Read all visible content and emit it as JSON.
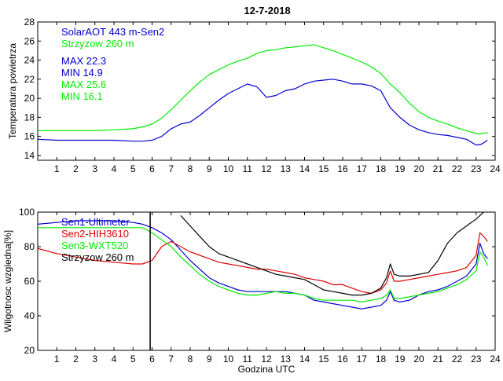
{
  "figure_title": "12-7-2018",
  "chart_data": [
    {
      "type": "line",
      "title": "12-7-2018",
      "xlabel": "",
      "ylabel": "Temperatura powietrza",
      "xlim": [
        0,
        24
      ],
      "ylim": [
        13.5,
        28
      ],
      "xticks": [
        1,
        2,
        3,
        4,
        5,
        6,
        7,
        8,
        9,
        10,
        11,
        12,
        13,
        14,
        15,
        16,
        17,
        18,
        19,
        20,
        21,
        22,
        23,
        24
      ],
      "yticks": [
        14,
        16,
        18,
        20,
        22,
        24,
        26,
        28
      ],
      "legend_position": "top-left",
      "legend": [
        {
          "label": "SolarAOT 443 m-Sen2",
          "color": "#0000cc"
        },
        {
          "label": "Strzyzow 260 m",
          "color": "#00ee00"
        }
      ],
      "annotations": [
        {
          "text": "MAX 22.3",
          "color": "#0000cc"
        },
        {
          "text": "MIN 14.9",
          "color": "#0000cc"
        },
        {
          "text": "MAX 25.6",
          "color": "#00ee00"
        },
        {
          "text": "MIN 16.1",
          "color": "#00ee00"
        }
      ],
      "x": [
        0,
        1,
        2,
        3,
        4,
        5,
        5.5,
        6,
        6.5,
        7,
        7.5,
        8,
        8.5,
        9,
        9.5,
        10,
        10.5,
        11,
        11.5,
        12,
        12.5,
        13,
        13.5,
        14,
        14.5,
        15,
        15.5,
        16,
        16.5,
        17,
        17.5,
        18,
        18.5,
        19,
        19.5,
        20,
        20.5,
        21,
        21.5,
        22,
        22.5,
        23,
        23.3,
        23.6
      ],
      "series": [
        {
          "name": "SolarAOT 443 m-Sen2",
          "color": "#0000cc",
          "values": [
            15.7,
            15.6,
            15.6,
            15.6,
            15.6,
            15.5,
            15.5,
            15.6,
            16.0,
            16.8,
            17.3,
            17.5,
            18.2,
            19.0,
            19.8,
            20.5,
            21.0,
            21.5,
            21.2,
            20.1,
            20.3,
            20.8,
            21.0,
            21.5,
            21.8,
            21.9,
            22.0,
            21.8,
            21.5,
            21.5,
            21.3,
            20.8,
            19.0,
            18.0,
            17.2,
            16.7,
            16.4,
            16.2,
            16.1,
            15.9,
            15.7,
            15.1,
            15.2,
            15.6
          ]
        },
        {
          "name": "Strzyzow 260 m",
          "color": "#00ee00",
          "values": [
            16.6,
            16.6,
            16.6,
            16.6,
            16.7,
            16.8,
            17.0,
            17.3,
            17.9,
            18.8,
            19.8,
            20.8,
            21.7,
            22.5,
            23.0,
            23.5,
            23.9,
            24.2,
            24.7,
            25.0,
            25.1,
            25.3,
            25.4,
            25.5,
            25.6,
            25.3,
            25.0,
            24.6,
            24.2,
            23.8,
            23.3,
            22.6,
            21.5,
            20.6,
            19.5,
            18.6,
            18.0,
            17.6,
            17.3,
            16.9,
            16.6,
            16.3,
            16.3,
            16.4
          ]
        }
      ]
    },
    {
      "type": "line",
      "title": "",
      "xlabel": "Godzina UTC",
      "ylabel": "Wilgotnosc wzgledna[%]",
      "xlim": [
        0,
        24
      ],
      "ylim": [
        20,
        100
      ],
      "xticks": [
        1,
        2,
        3,
        4,
        5,
        6,
        7,
        8,
        9,
        10,
        11,
        12,
        13,
        14,
        15,
        16,
        17,
        18,
        19,
        20,
        21,
        22,
        23,
        24
      ],
      "yticks": [
        20,
        40,
        60,
        80,
        100
      ],
      "legend_position": "top-left",
      "legend": [
        {
          "label": "Sen1-Ultimeter",
          "color": "#0000cc"
        },
        {
          "label": "Sen2-HIH3610",
          "color": "#dd0000"
        },
        {
          "label": "Sen3-WXT520",
          "color": "#00ee00"
        },
        {
          "label": "Strzyzow 260 m",
          "color": "#000000"
        }
      ],
      "x": [
        0,
        1,
        2,
        3,
        4,
        5,
        5.5,
        6,
        6.5,
        7,
        7.5,
        8,
        8.5,
        9,
        9.5,
        10,
        10.5,
        11,
        11.5,
        12,
        12.5,
        13,
        13.5,
        14,
        14.5,
        15,
        15.5,
        16,
        16.5,
        17,
        17.5,
        18,
        18.3,
        18.5,
        18.7,
        19,
        19.5,
        20,
        20.5,
        21,
        21.5,
        22,
        22.5,
        23,
        23.2,
        23.4,
        23.6
      ],
      "series": [
        {
          "name": "Sen1-Ultimeter",
          "color": "#0000cc",
          "values": [
            93,
            94,
            95,
            95,
            95,
            94,
            93,
            91,
            88,
            84,
            78,
            72,
            67,
            62,
            59,
            57,
            55,
            54,
            54,
            54,
            54,
            54,
            53,
            52,
            49,
            48,
            47,
            46,
            45,
            44,
            45,
            46,
            49,
            54,
            49,
            48,
            49,
            52,
            54,
            55,
            57,
            60,
            63,
            70,
            82,
            76,
            73
          ]
        },
        {
          "name": "Sen2-HIH3610",
          "color": "#dd0000",
          "values": [
            79,
            76,
            74,
            72,
            71,
            70,
            70,
            72,
            80,
            83,
            80,
            77,
            75,
            73,
            71,
            70,
            69,
            68,
            67,
            67,
            66,
            65,
            64,
            62,
            61,
            60,
            58,
            58,
            56,
            54,
            53,
            55,
            59,
            66,
            60,
            60,
            61,
            62,
            63,
            64,
            65,
            66,
            68,
            75,
            88,
            86,
            83
          ]
        },
        {
          "name": "Sen3-WXT520",
          "color": "#00ee00",
          "values": [
            91,
            91,
            91,
            91,
            91,
            91,
            91,
            88,
            84,
            80,
            74,
            69,
            64,
            60,
            57,
            55,
            53,
            52,
            52,
            53,
            54,
            53,
            53,
            52,
            50,
            49,
            49,
            49,
            49,
            48,
            49,
            50,
            52,
            55,
            50,
            50,
            51,
            52,
            53,
            54,
            56,
            58,
            61,
            66,
            77,
            74,
            69
          ]
        },
        {
          "name": "Strzyzow 260 m",
          "color": "#000000",
          "values": [
            null,
            null,
            null,
            null,
            null,
            null,
            null,
            null,
            null,
            null,
            98,
            92,
            86,
            80,
            76,
            74,
            72,
            70,
            68,
            66,
            64,
            63,
            62,
            61,
            58,
            55,
            54,
            53,
            52,
            52,
            53,
            56,
            62,
            70,
            64,
            63,
            63,
            64,
            65,
            72,
            82,
            88,
            92,
            96,
            98,
            100,
            101
          ]
        }
      ],
      "annotations": [
        {
          "text": "vertical spike at 5.9 h",
          "x": 5.9,
          "y_range": [
            20,
            100
          ],
          "color": "#000000"
        }
      ]
    }
  ]
}
